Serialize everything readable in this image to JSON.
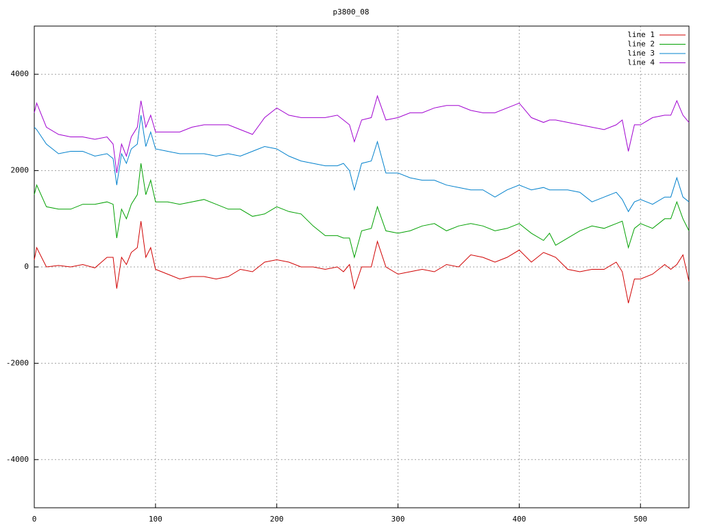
{
  "chart_data": {
    "type": "line",
    "title": "p3800_08",
    "x": [
      0,
      2,
      10,
      20,
      30,
      40,
      50,
      60,
      65,
      68,
      72,
      76,
      80,
      85,
      88,
      92,
      96,
      100,
      110,
      120,
      130,
      140,
      150,
      160,
      170,
      180,
      190,
      200,
      210,
      220,
      230,
      240,
      250,
      255,
      260,
      264,
      270,
      278,
      283,
      290,
      300,
      310,
      320,
      330,
      340,
      350,
      360,
      370,
      380,
      390,
      400,
      410,
      420,
      425,
      430,
      440,
      450,
      460,
      470,
      480,
      485,
      490,
      495,
      500,
      510,
      520,
      525,
      530,
      535,
      540
    ],
    "series": [
      {
        "name": "line 1",
        "color": "#d00000",
        "values": [
          150,
          400,
          0,
          30,
          0,
          50,
          -20,
          200,
          200,
          -450,
          200,
          50,
          300,
          400,
          950,
          200,
          400,
          -50,
          -150,
          -250,
          -200,
          -200,
          -250,
          -200,
          -50,
          -100,
          100,
          150,
          100,
          0,
          0,
          -50,
          0,
          -100,
          50,
          -450,
          0,
          0,
          530,
          0,
          -150,
          -100,
          -50,
          -100,
          50,
          0,
          250,
          200,
          100,
          200,
          350,
          100,
          300,
          250,
          200,
          -50,
          -100,
          -50,
          -50,
          100,
          -100,
          -750,
          -250,
          -250,
          -150,
          50,
          -50,
          50,
          250,
          -300
        ]
      },
      {
        "name": "line 2",
        "color": "#00a000",
        "values": [
          1500,
          1700,
          1250,
          1200,
          1200,
          1300,
          1300,
          1350,
          1300,
          600,
          1200,
          1000,
          1300,
          1500,
          2150,
          1500,
          1800,
          1350,
          1350,
          1300,
          1350,
          1400,
          1300,
          1200,
          1200,
          1050,
          1100,
          1250,
          1150,
          1100,
          850,
          650,
          650,
          600,
          600,
          200,
          750,
          800,
          1250,
          750,
          700,
          750,
          850,
          900,
          750,
          850,
          900,
          850,
          750,
          800,
          900,
          700,
          550,
          700,
          450,
          600,
          750,
          850,
          800,
          900,
          950,
          400,
          800,
          900,
          800,
          1000,
          1000,
          1350,
          1000,
          750
        ]
      },
      {
        "name": "line 3",
        "color": "#0080cc",
        "values": [
          2900,
          2850,
          2550,
          2350,
          2400,
          2400,
          2300,
          2350,
          2250,
          1700,
          2350,
          2150,
          2450,
          2550,
          3150,
          2500,
          2800,
          2450,
          2400,
          2350,
          2350,
          2350,
          2300,
          2350,
          2300,
          2400,
          2500,
          2450,
          2300,
          2200,
          2150,
          2100,
          2100,
          2150,
          2000,
          1600,
          2150,
          2200,
          2600,
          1950,
          1950,
          1850,
          1800,
          1800,
          1700,
          1650,
          1600,
          1600,
          1450,
          1600,
          1700,
          1600,
          1650,
          1600,
          1600,
          1600,
          1550,
          1350,
          1450,
          1550,
          1400,
          1150,
          1350,
          1400,
          1300,
          1450,
          1450,
          1850,
          1450,
          1350
        ]
      },
      {
        "name": "line 4",
        "color": "#a000d0",
        "values": [
          3200,
          3400,
          2900,
          2750,
          2700,
          2700,
          2650,
          2700,
          2550,
          1950,
          2550,
          2300,
          2700,
          2900,
          3450,
          2900,
          3150,
          2800,
          2800,
          2800,
          2900,
          2950,
          2950,
          2950,
          2850,
          2750,
          3100,
          3300,
          3150,
          3100,
          3100,
          3100,
          3150,
          3050,
          2950,
          2600,
          3050,
          3100,
          3550,
          3050,
          3100,
          3200,
          3200,
          3300,
          3350,
          3350,
          3250,
          3200,
          3200,
          3300,
          3400,
          3100,
          3000,
          3050,
          3050,
          3000,
          2950,
          2900,
          2850,
          2950,
          3050,
          2400,
          2950,
          2950,
          3100,
          3150,
          3150,
          3450,
          3150,
          3000
        ]
      }
    ],
    "xlim": [
      0,
      540
    ],
    "ylim": [
      -5000,
      5000
    ],
    "xticks": [
      0,
      100,
      200,
      300,
      400,
      500
    ],
    "yticks": [
      -4000,
      -2000,
      0,
      2000,
      4000
    ],
    "grid": true,
    "legend": "top-right"
  }
}
